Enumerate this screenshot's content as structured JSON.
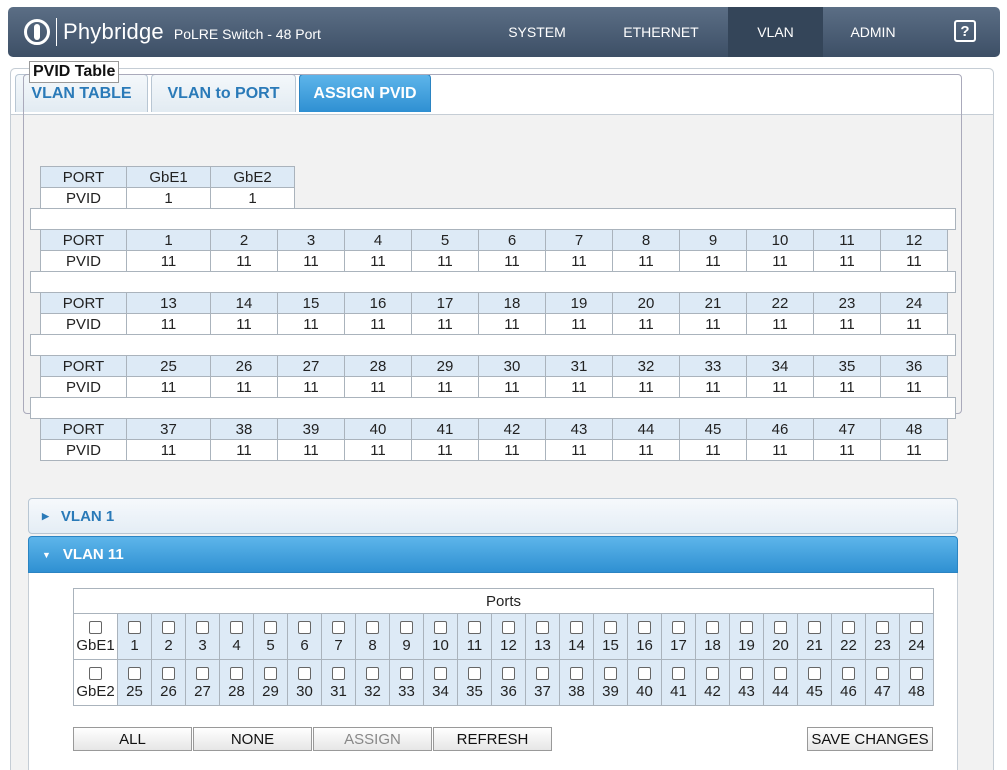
{
  "header": {
    "brand": "Phybridge",
    "product": "PoLRE Switch - 48 Port",
    "nav": [
      "SYSTEM",
      "ETHERNET",
      "VLAN",
      "ADMIN"
    ],
    "active_nav": "VLAN",
    "help": "?"
  },
  "tabs": [
    "VLAN TABLE",
    "VLAN to PORT",
    "ASSIGN PVID"
  ],
  "active_tab": "ASSIGN PVID",
  "pvid_table": {
    "legend": "PVID Table",
    "port_label": "PORT",
    "pvid_label": "PVID",
    "uplinks": {
      "ports": [
        "GbE1",
        "GbE2"
      ],
      "pvids": [
        "1",
        "1"
      ]
    },
    "rows": [
      {
        "ports": [
          "1",
          "2",
          "3",
          "4",
          "5",
          "6",
          "7",
          "8",
          "9",
          "10",
          "11",
          "12"
        ],
        "pvids": [
          "11",
          "11",
          "11",
          "11",
          "11",
          "11",
          "11",
          "11",
          "11",
          "11",
          "11",
          "11"
        ]
      },
      {
        "ports": [
          "13",
          "14",
          "15",
          "16",
          "17",
          "18",
          "19",
          "20",
          "21",
          "22",
          "23",
          "24"
        ],
        "pvids": [
          "11",
          "11",
          "11",
          "11",
          "11",
          "11",
          "11",
          "11",
          "11",
          "11",
          "11",
          "11"
        ]
      },
      {
        "ports": [
          "25",
          "26",
          "27",
          "28",
          "29",
          "30",
          "31",
          "32",
          "33",
          "34",
          "35",
          "36"
        ],
        "pvids": [
          "11",
          "11",
          "11",
          "11",
          "11",
          "11",
          "11",
          "11",
          "11",
          "11",
          "11",
          "11"
        ]
      },
      {
        "ports": [
          "37",
          "38",
          "39",
          "40",
          "41",
          "42",
          "43",
          "44",
          "45",
          "46",
          "47",
          "48"
        ],
        "pvids": [
          "11",
          "11",
          "11",
          "11",
          "11",
          "11",
          "11",
          "11",
          "11",
          "11",
          "11",
          "11"
        ]
      }
    ]
  },
  "accordions": [
    {
      "label": "VLAN 1",
      "open": false
    },
    {
      "label": "VLAN 11",
      "open": true
    }
  ],
  "ports_panel": {
    "title": "Ports",
    "row1": [
      "GbE1",
      "1",
      "2",
      "3",
      "4",
      "5",
      "6",
      "7",
      "8",
      "9",
      "10",
      "11",
      "12",
      "13",
      "14",
      "15",
      "16",
      "17",
      "18",
      "19",
      "20",
      "21",
      "22",
      "23",
      "24"
    ],
    "row2": [
      "GbE2",
      "25",
      "26",
      "27",
      "28",
      "29",
      "30",
      "31",
      "32",
      "33",
      "34",
      "35",
      "36",
      "37",
      "38",
      "39",
      "40",
      "41",
      "42",
      "43",
      "44",
      "45",
      "46",
      "47",
      "48"
    ]
  },
  "buttons": {
    "all": "ALL",
    "none": "NONE",
    "assign": "ASSIGN",
    "refresh": "REFRESH",
    "save": "SAVE CHANGES"
  }
}
